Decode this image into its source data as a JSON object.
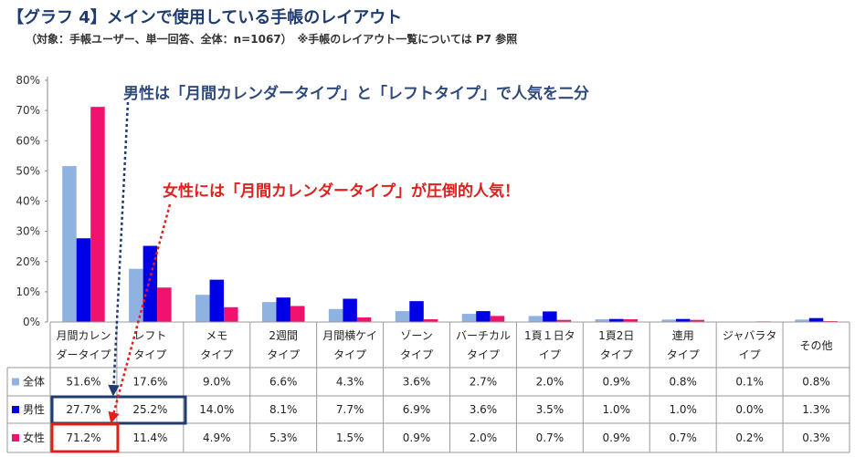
{
  "title": "【グラフ 4】メインで使用している手帳のレイアウト",
  "subtitle": "（対象：手帳ユーザー、単一回答、全体：n=1067）　※手帳のレイアウト一覧については P7 参照",
  "annotations": {
    "male": "男性は「月間カレンダータイプ」と「レフトタイプ」で人気を二分",
    "female": "女性には「月間カレンダータイプ」が圧倒的人気！"
  },
  "colors": {
    "all": "#8fb3e0",
    "male": "#0000e6",
    "female": "#f0126e",
    "ann_male": "#1f3b70",
    "ann_female": "#e0201c"
  },
  "chart_data": {
    "type": "bar",
    "title": "【グラフ 4】メインで使用している手帳のレイアウト",
    "categories": [
      [
        "月間カレン",
        "ダータイプ"
      ],
      [
        "レフト",
        "タイプ"
      ],
      [
        "メモ",
        "タイプ"
      ],
      [
        "2週間",
        "タイプ"
      ],
      [
        "月間横ケイ",
        "タイプ"
      ],
      [
        "ゾーン",
        "タイプ"
      ],
      [
        "バーチカル",
        "タイプ"
      ],
      [
        "1頁１日タ",
        "イプ"
      ],
      [
        "1頁2日",
        "タイプ"
      ],
      [
        "連用",
        "タイプ"
      ],
      [
        "ジャバラタ",
        "イプ"
      ],
      [
        "その他",
        ""
      ]
    ],
    "series": [
      {
        "name": "全体",
        "values": [
          51.6,
          17.6,
          9.0,
          6.6,
          4.3,
          3.6,
          2.7,
          2.0,
          0.9,
          0.8,
          0.1,
          0.8
        ],
        "labels": [
          "51.6%",
          "17.6%",
          "9.0%",
          "6.6%",
          "4.3%",
          "3.6%",
          "2.7%",
          "2.0%",
          "0.9%",
          "0.8%",
          "0.1%",
          "0.8%"
        ]
      },
      {
        "name": "男性",
        "values": [
          27.7,
          25.2,
          14.0,
          8.1,
          7.7,
          6.9,
          3.6,
          3.5,
          1.0,
          1.0,
          0.0,
          1.3
        ],
        "labels": [
          "27.7%",
          "25.2%",
          "14.0%",
          "8.1%",
          "7.7%",
          "6.9%",
          "3.6%",
          "3.5%",
          "1.0%",
          "1.0%",
          "0.0%",
          "1.3%"
        ]
      },
      {
        "name": "女性",
        "values": [
          71.2,
          11.4,
          4.9,
          5.3,
          1.5,
          0.9,
          2.0,
          0.7,
          0.9,
          0.7,
          0.2,
          0.3
        ],
        "labels": [
          "71.2%",
          "11.4%",
          "4.9%",
          "5.3%",
          "1.5%",
          "0.9%",
          "2.0%",
          "0.7%",
          "0.9%",
          "0.7%",
          "0.2%",
          "0.3%"
        ]
      }
    ],
    "yticks": [
      "0%",
      "10%",
      "20%",
      "30%",
      "40%",
      "50%",
      "60%",
      "70%",
      "80%"
    ],
    "ylim": [
      0,
      80
    ],
    "legend": "data-table"
  }
}
